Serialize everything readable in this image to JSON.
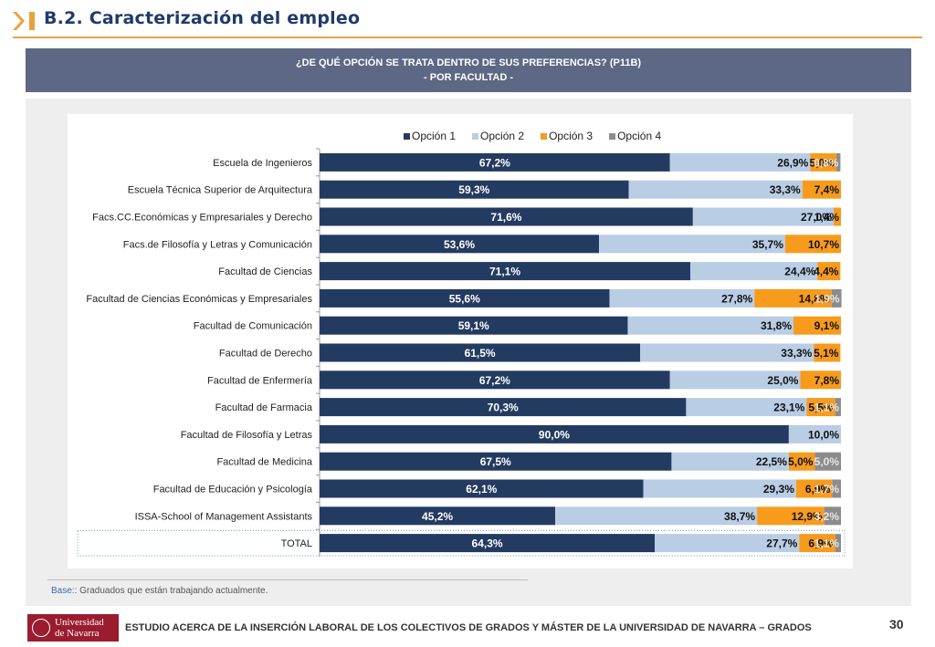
{
  "header": {
    "title": "B.2. Caracterización del empleo",
    "question_line1": "¿DE QUÉ OPCIÓN SE TRATA DENTRO DE SUS PREFERENCIAS? (P11B)",
    "question_line2": "- POR FACULTAD -"
  },
  "colors": {
    "opcion1": "#233b60",
    "opcion2": "#b9cde5",
    "opcion3": "#f79b1d",
    "opcion4": "#8c8c8c",
    "accent": "#e9a23b"
  },
  "chart_data": {
    "type": "bar",
    "orientation": "horizontal",
    "stacked": "percent",
    "title": "¿DE QUÉ OPCIÓN SE TRATA DENTRO DE SUS PREFERENCIAS? (P11B) - POR FACULTAD -",
    "legend_position": "top",
    "categories": [
      "Escuela de Ingenieros",
      "Escuela Técnica Superior de Arquitectura",
      "Facs.CC.Económicas y Empresariales y Derecho",
      "Facs.de Filosofía y Letras y Comunicación",
      "Facultad de Ciencias",
      "Facultad de Ciencias Económicas y Empresariales",
      "Facultad de Comunicación",
      "Facultad de Derecho",
      "Facultad de Enfermería",
      "Facultad de Farmacia",
      "Facultad de Filosofía y Letras",
      "Facultad de Medicina",
      "Facultad de Educación y Psicología",
      "ISSA-School of Management Assistants",
      "TOTAL"
    ],
    "series": [
      {
        "name": "Opción 1",
        "values": [
          67.2,
          59.3,
          71.6,
          53.6,
          71.1,
          55.6,
          59.1,
          61.5,
          67.2,
          70.3,
          90.0,
          67.5,
          62.1,
          45.2,
          64.3
        ],
        "labels": [
          "67,2%",
          "59,3%",
          "71,6%",
          "53,6%",
          "71,1%",
          "55,6%",
          "59,1%",
          "61,5%",
          "67,2%",
          "70,3%",
          "90,0%",
          "67,5%",
          "62,1%",
          "45,2%",
          "64,3%"
        ]
      },
      {
        "name": "Opción 2",
        "values": [
          26.9,
          33.3,
          27.0,
          35.7,
          24.4,
          27.8,
          31.8,
          33.3,
          25.0,
          23.1,
          10.0,
          22.5,
          29.3,
          38.7,
          27.7
        ],
        "labels": [
          "26,9%",
          "33,3%",
          "27,0%",
          "35,7%",
          "24,4%",
          "27,8%",
          "31,8%",
          "33,3%",
          "25,0%",
          "23,1%",
          "10,0%",
          "22,5%",
          "29,3%",
          "38,7%",
          "27,7%"
        ]
      },
      {
        "name": "Opción 3",
        "values": [
          5.0,
          7.4,
          1.4,
          10.7,
          4.4,
          14.8,
          9.1,
          5.1,
          7.8,
          5.5,
          0,
          5.0,
          6.9,
          12.9,
          6.9
        ],
        "labels": [
          "5,0%",
          "7,4%",
          "1,4%",
          "10,7%",
          "4,4%",
          "14,8%",
          "9,1%",
          "5,1%",
          "7,8%",
          "5,5%",
          "",
          "5,0%",
          "6,9%",
          "12,9%",
          "6,9%"
        ]
      },
      {
        "name": "Opción 4",
        "values": [
          0.8,
          0,
          0,
          0,
          0,
          1.9,
          0,
          0,
          0,
          1.1,
          0,
          5.0,
          1.7,
          3.2,
          1.1
        ],
        "labels": [
          "0,8%",
          "",
          "",
          "",
          "",
          "1,9%",
          "",
          "",
          "",
          "1,1%",
          "",
          "5,0%",
          "1,7%",
          "3,2%",
          "1,1%"
        ]
      }
    ],
    "xlim": [
      0,
      100
    ]
  },
  "footer": {
    "base_label": "Base:",
    "base_text": ": Graduados que están trabajando actualmente.",
    "logo_line1": "Universidad",
    "logo_line2": "de Navarra",
    "study_title": "ESTUDIO ACERCA DE LA INSERCIÓN LABORAL DE LOS COLECTIVOS DE GRADOS Y MÁSTER DE LA UNIVERSIDAD DE NAVARRA – GRADOS",
    "page_number": "30"
  }
}
